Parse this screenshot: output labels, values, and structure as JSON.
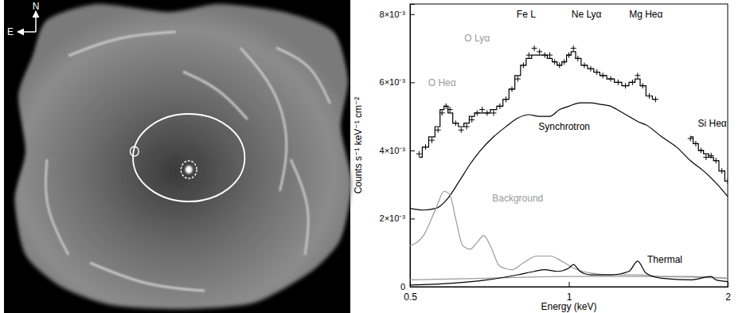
{
  "image": {
    "compass": {
      "north": "N",
      "east": "E"
    }
  },
  "chart_data": {
    "type": "line",
    "log": "x",
    "xlabel": "Energy (keV)",
    "ylabel": "Counts s⁻¹ keV⁻¹ cm⁻²",
    "xlim": [
      0.5,
      2
    ],
    "ylim": [
      0,
      0.0083
    ],
    "xticks": [
      0.5,
      1,
      2
    ],
    "yticks": [
      0,
      {
        "value": 0.002,
        "label": "2×10⁻³"
      },
      {
        "value": 0.004,
        "label": "4×10⁻³"
      },
      {
        "value": 0.006,
        "label": "6×10⁻³"
      },
      {
        "value": 0.008,
        "label": "8×10⁻³"
      }
    ],
    "series": [
      {
        "type": "scatter",
        "marker": "plus",
        "color": "#000000",
        "x": [
          0.52,
          0.535,
          0.55,
          0.565,
          0.575,
          0.585,
          0.595,
          0.61,
          0.625,
          0.64,
          0.655,
          0.67,
          0.685,
          0.7,
          0.72,
          0.74,
          0.76,
          0.78,
          0.8,
          0.82,
          0.84,
          0.86,
          0.88,
          0.9,
          0.92,
          0.94,
          0.96,
          0.98,
          1.0,
          1.02,
          1.04,
          1.07,
          1.1,
          1.13,
          1.16,
          1.2,
          1.24,
          1.28,
          1.32,
          1.35,
          1.38,
          1.42,
          1.46,
          1.7,
          1.74,
          1.78,
          1.82,
          1.86,
          1.9,
          1.95,
          2.0
        ],
        "values": [
          0.0039,
          0.0041,
          0.0043,
          0.0046,
          0.0051,
          0.0053,
          0.0052,
          0.0048,
          0.0046,
          0.0047,
          0.0049,
          0.0051,
          0.0052,
          0.0051,
          0.0051,
          0.0053,
          0.0055,
          0.0058,
          0.0061,
          0.0065,
          0.0068,
          0.007,
          0.0069,
          0.0068,
          0.0068,
          0.0066,
          0.0065,
          0.0066,
          0.0068,
          0.007,
          0.0067,
          0.0065,
          0.0064,
          0.0063,
          0.0062,
          0.0061,
          0.006,
          0.0059,
          0.006,
          0.0062,
          0.0059,
          0.0056,
          0.0055,
          0.00435,
          0.0042,
          0.004,
          0.0038,
          0.00385,
          0.0037,
          0.0034,
          0.0031
        ]
      },
      {
        "type": "line",
        "line_style": "step",
        "color": "#000000",
        "x": [
          0.52,
          0.535,
          0.55,
          0.565,
          0.575,
          0.585,
          0.595,
          0.61,
          0.625,
          0.64,
          0.655,
          0.67,
          0.685,
          0.7,
          0.72,
          0.74,
          0.76,
          0.78,
          0.8,
          0.82,
          0.84,
          0.86,
          0.88,
          0.9,
          0.92,
          0.94,
          0.96,
          0.98,
          1.0,
          1.02,
          1.04,
          1.07,
          1.1,
          1.13,
          1.16,
          1.2,
          1.24,
          1.28,
          1.32,
          1.35,
          1.38,
          1.42,
          1.46,
          1.58,
          1.7,
          1.74,
          1.78,
          1.82,
          1.86,
          1.9,
          1.95,
          2.0
        ],
        "values": [
          0.0038,
          0.0041,
          0.0044,
          0.0047,
          0.0052,
          0.0053,
          0.0051,
          0.0048,
          0.0047,
          0.0048,
          0.005,
          0.0051,
          0.0051,
          0.0051,
          0.0052,
          0.0053,
          0.0055,
          0.0058,
          0.0062,
          0.0065,
          0.0067,
          0.0068,
          0.0068,
          0.0068,
          0.0067,
          0.0066,
          0.0065,
          0.0066,
          0.0068,
          0.0069,
          0.0067,
          0.0065,
          0.0064,
          0.0063,
          0.0062,
          0.0061,
          0.006,
          0.0059,
          0.006,
          0.0061,
          0.0059,
          0.0056,
          0.0055,
          null,
          0.0044,
          0.0042,
          0.004,
          0.0039,
          0.0038,
          0.0037,
          0.0034,
          0.0031
        ]
      },
      {
        "type": "line",
        "line_style": "solid",
        "color": "#000000",
        "x": [
          0.5,
          0.53,
          0.56,
          0.59,
          0.62,
          0.65,
          0.68,
          0.72,
          0.76,
          0.8,
          0.84,
          0.88,
          0.92,
          0.96,
          1.0,
          1.05,
          1.1,
          1.15,
          1.2,
          1.25,
          1.3,
          1.35,
          1.4,
          1.5,
          1.6,
          1.7,
          1.8,
          1.9,
          2.0
        ],
        "values": [
          0.0023,
          0.00225,
          0.0023,
          0.0026,
          0.0031,
          0.0036,
          0.004,
          0.0044,
          0.0047,
          0.00495,
          0.00505,
          0.005,
          0.005,
          0.0052,
          0.0053,
          0.0054,
          0.0054,
          0.00535,
          0.0053,
          0.00515,
          0.005,
          0.00485,
          0.00475,
          0.0044,
          0.0041,
          0.0037,
          0.0034,
          0.00305,
          0.00265
        ]
      },
      {
        "type": "line",
        "line_style": "solid",
        "color": "#9a9a9a",
        "x": [
          0.5,
          0.53,
          0.56,
          0.58,
          0.595,
          0.61,
          0.63,
          0.65,
          0.67,
          0.69,
          0.71,
          0.74,
          0.78,
          0.82,
          0.87,
          0.92,
          0.97,
          1.02,
          1.1,
          1.2,
          1.35,
          1.5,
          1.7,
          2.0
        ],
        "values": [
          0.0012,
          0.0015,
          0.0023,
          0.0028,
          0.0027,
          0.002,
          0.0012,
          0.0011,
          0.0013,
          0.0015,
          0.0012,
          0.0006,
          0.0005,
          0.0007,
          0.0009,
          0.0009,
          0.00075,
          0.00055,
          0.0004,
          0.00035,
          0.00035,
          0.0003,
          0.0003,
          0.00025
        ]
      },
      {
        "type": "line",
        "line_style": "solid",
        "color": "#9a9a9a",
        "x": [
          0.5,
          0.7,
          1.0,
          1.4,
          2.0
        ],
        "values": [
          0.0002,
          0.00025,
          0.0003,
          0.0003,
          0.00025
        ]
      },
      {
        "type": "line",
        "line_style": "solid",
        "color": "#000000",
        "x": [
          0.5,
          0.6,
          0.7,
          0.8,
          0.86,
          0.9,
          0.95,
          1.0,
          1.02,
          1.05,
          1.1,
          1.2,
          1.3,
          1.35,
          1.4,
          1.5,
          1.7,
          1.86,
          1.9,
          2.0
        ],
        "values": [
          5e-05,
          0.0001,
          0.0002,
          0.00035,
          0.00045,
          0.0005,
          0.00045,
          0.00055,
          0.00065,
          0.00045,
          0.00035,
          0.00035,
          0.00045,
          0.00075,
          0.0004,
          0.00025,
          0.0002,
          0.0003,
          0.0002,
          0.00015
        ]
      }
    ],
    "annotations": [
      {
        "text": "O Heα",
        "x": 0.575,
        "y": 0.0059,
        "color": "#9a9a9a"
      },
      {
        "text": "O Lyα",
        "x": 0.67,
        "y": 0.0072,
        "color": "#9a9a9a"
      },
      {
        "text": "Fe L",
        "x": 0.83,
        "y": 0.0079,
        "color": "#000000"
      },
      {
        "text": "Ne Lyα",
        "x": 1.08,
        "y": 0.0079,
        "color": "#000000"
      },
      {
        "text": "Mg Heα",
        "x": 1.4,
        "y": 0.0079,
        "color": "#000000"
      },
      {
        "text": "Si Heα",
        "x": 1.87,
        "y": 0.0047,
        "color": "#000000"
      },
      {
        "text": "Synchrotron",
        "x": 0.98,
        "y": 0.0046,
        "color": "#000000"
      },
      {
        "text": "Background",
        "x": 0.8,
        "y": 0.0025,
        "color": "#9a9a9a"
      },
      {
        "text": "Thermal",
        "x": 1.52,
        "y": 0.0007,
        "color": "#000000"
      }
    ]
  }
}
